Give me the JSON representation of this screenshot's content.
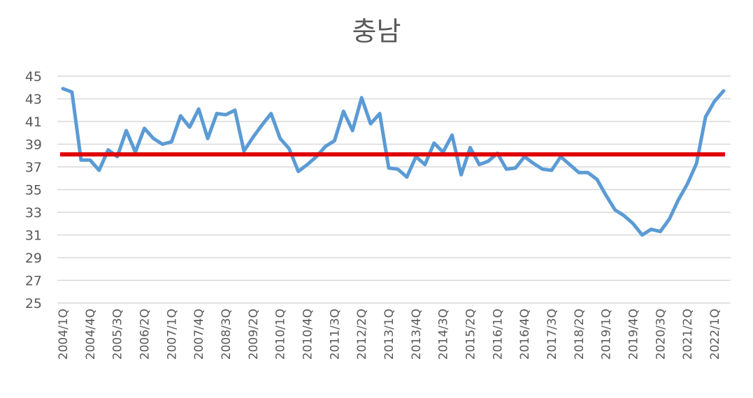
{
  "chart_data": {
    "type": "line",
    "title": "충남",
    "xlabel": "",
    "ylabel": "",
    "ylim": [
      25,
      45
    ],
    "yticks": [
      25,
      27,
      29,
      31,
      33,
      35,
      37,
      39,
      41,
      43,
      45
    ],
    "grid": true,
    "x": [
      "2004/1Q",
      "2004/2Q",
      "2004/3Q",
      "2004/4Q",
      "2005/1Q",
      "2005/2Q",
      "2005/3Q",
      "2005/4Q",
      "2006/1Q",
      "2006/2Q",
      "2006/3Q",
      "2006/4Q",
      "2007/1Q",
      "2007/2Q",
      "2007/3Q",
      "2007/4Q",
      "2008/1Q",
      "2008/2Q",
      "2008/3Q",
      "2008/4Q",
      "2009/1Q",
      "2009/2Q",
      "2009/3Q",
      "2009/4Q",
      "2010/1Q",
      "2010/2Q",
      "2010/3Q",
      "2010/4Q",
      "2011/1Q",
      "2011/2Q",
      "2011/3Q",
      "2011/4Q",
      "2012/1Q",
      "2012/2Q",
      "2012/3Q",
      "2012/4Q",
      "2013/1Q",
      "2013/2Q",
      "2013/3Q",
      "2013/4Q",
      "2014/1Q",
      "2014/2Q",
      "2014/3Q",
      "2014/4Q",
      "2015/1Q",
      "2015/2Q",
      "2015/3Q",
      "2015/4Q",
      "2016/1Q",
      "2016/2Q",
      "2016/3Q",
      "2016/4Q",
      "2017/1Q",
      "2017/2Q",
      "2017/3Q",
      "2017/4Q",
      "2018/1Q",
      "2018/2Q",
      "2018/3Q",
      "2018/4Q",
      "2019/1Q",
      "2019/2Q",
      "2019/3Q",
      "2019/4Q",
      "2020/1Q",
      "2020/2Q",
      "2020/3Q",
      "2020/4Q",
      "2021/1Q",
      "2021/2Q",
      "2021/3Q",
      "2021/4Q",
      "2022/1Q",
      "2022/2Q"
    ],
    "tick_labels": [
      "2004/1Q",
      "2004/4Q",
      "2005/3Q",
      "2006/2Q",
      "2007/1Q",
      "2007/4Q",
      "2008/3Q",
      "2009/2Q",
      "2010/1Q",
      "2010/4Q",
      "2011/3Q",
      "2012/2Q",
      "2013/1Q",
      "2013/4Q",
      "2014/3Q",
      "2015/2Q",
      "2016/1Q",
      "2016/4Q",
      "2017/3Q",
      "2018/2Q",
      "2019/1Q",
      "2019/4Q",
      "2020/3Q",
      "2021/2Q",
      "2022/1Q"
    ],
    "series": [
      {
        "color": "#5b9bd5",
        "values": [
          43.9,
          43.6,
          37.6,
          37.6,
          36.7,
          38.5,
          37.9,
          40.2,
          38.3,
          40.4,
          39.5,
          39.0,
          39.2,
          41.5,
          40.5,
          42.1,
          39.5,
          41.7,
          41.6,
          42.0,
          38.4,
          39.6,
          40.7,
          41.7,
          39.5,
          38.6,
          36.6,
          37.2,
          37.9,
          38.8,
          39.3,
          41.9,
          40.2,
          43.1,
          40.8,
          41.7,
          36.9,
          36.8,
          36.1,
          37.9,
          37.2,
          39.1,
          38.3,
          39.8,
          36.3,
          38.7,
          37.2,
          37.5,
          38.2,
          36.8,
          36.9,
          37.9,
          37.3,
          36.8,
          36.7,
          37.9,
          37.2,
          36.5,
          36.5,
          35.9,
          34.5,
          33.2,
          32.7,
          32.0,
          31.0,
          31.5,
          31.3,
          32.4,
          34.1,
          35.5,
          37.3,
          41.4,
          42.8,
          43.7
        ]
      }
    ],
    "reference_line": {
      "value": 38.1,
      "color": "#e00000"
    }
  }
}
